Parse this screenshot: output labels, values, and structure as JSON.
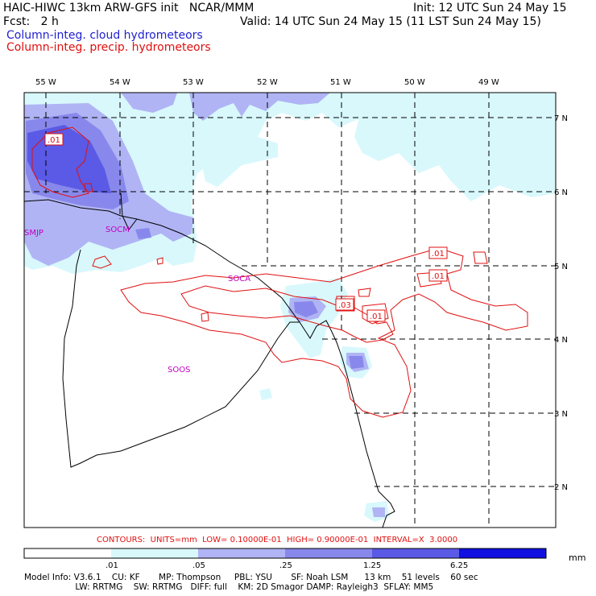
{
  "header": {
    "title_left": "HAIC-HIWC 13km ARW-GFS init   NCAR/MMM",
    "init": "Init: 12 UTC Sun 24 May 15",
    "fcst": "Fcst:   2 h",
    "valid": "Valid: 14 UTC Sun 24 May 15 (11 LST Sun 24 May 15)",
    "legend_cloud": "Column-integ. cloud hydrometeors",
    "legend_precip": "Column-integ. precip. hydrometeors"
  },
  "colors": {
    "cloud_legend": "#1f1fd0",
    "precip_contour": "#e01010",
    "station": "#c000c0",
    "shade_1": "#d8f8fc",
    "shade_2": "#b0b4f4",
    "shade_3": "#8888ec",
    "shade_4": "#5a5ae6",
    "shade_5": "#1010e0"
  },
  "map": {
    "longitudes": [
      "55 W",
      "54 W",
      "53 W",
      "52 W",
      "51 W",
      "50 W",
      "49 W"
    ],
    "latitudes": [
      "7 N",
      "6 N",
      "5 N",
      "4 N",
      "3 N",
      "2 N"
    ],
    "stations": [
      "SMJP",
      "SOCM",
      "SOCA",
      "SOOS"
    ],
    "contour_labels": [
      ".01",
      ".01",
      ".01",
      ".03",
      ".01"
    ]
  },
  "colorbar": {
    "ticks": [
      ".01",
      ".05",
      ".25",
      "1.25",
      "6.25"
    ],
    "units": "mm"
  },
  "contours_text": "CONTOURS:  UNITS=mm  LOW= 0.10000E-01  HIGH= 0.90000E-01  INTERVAL=X  3.0000",
  "model_info": {
    "line1": "Model Info: V3.6.1    CU: KF       MP: Thompson     PBL: YSU       SF: Noah LSM      13 km    51 levels    60 sec",
    "line2": "                   LW: RRTMG    SW: RRTMG   DIFF: full    KM: 2D Smagor DAMP: Rayleigh3  SFLAY: MM5"
  }
}
